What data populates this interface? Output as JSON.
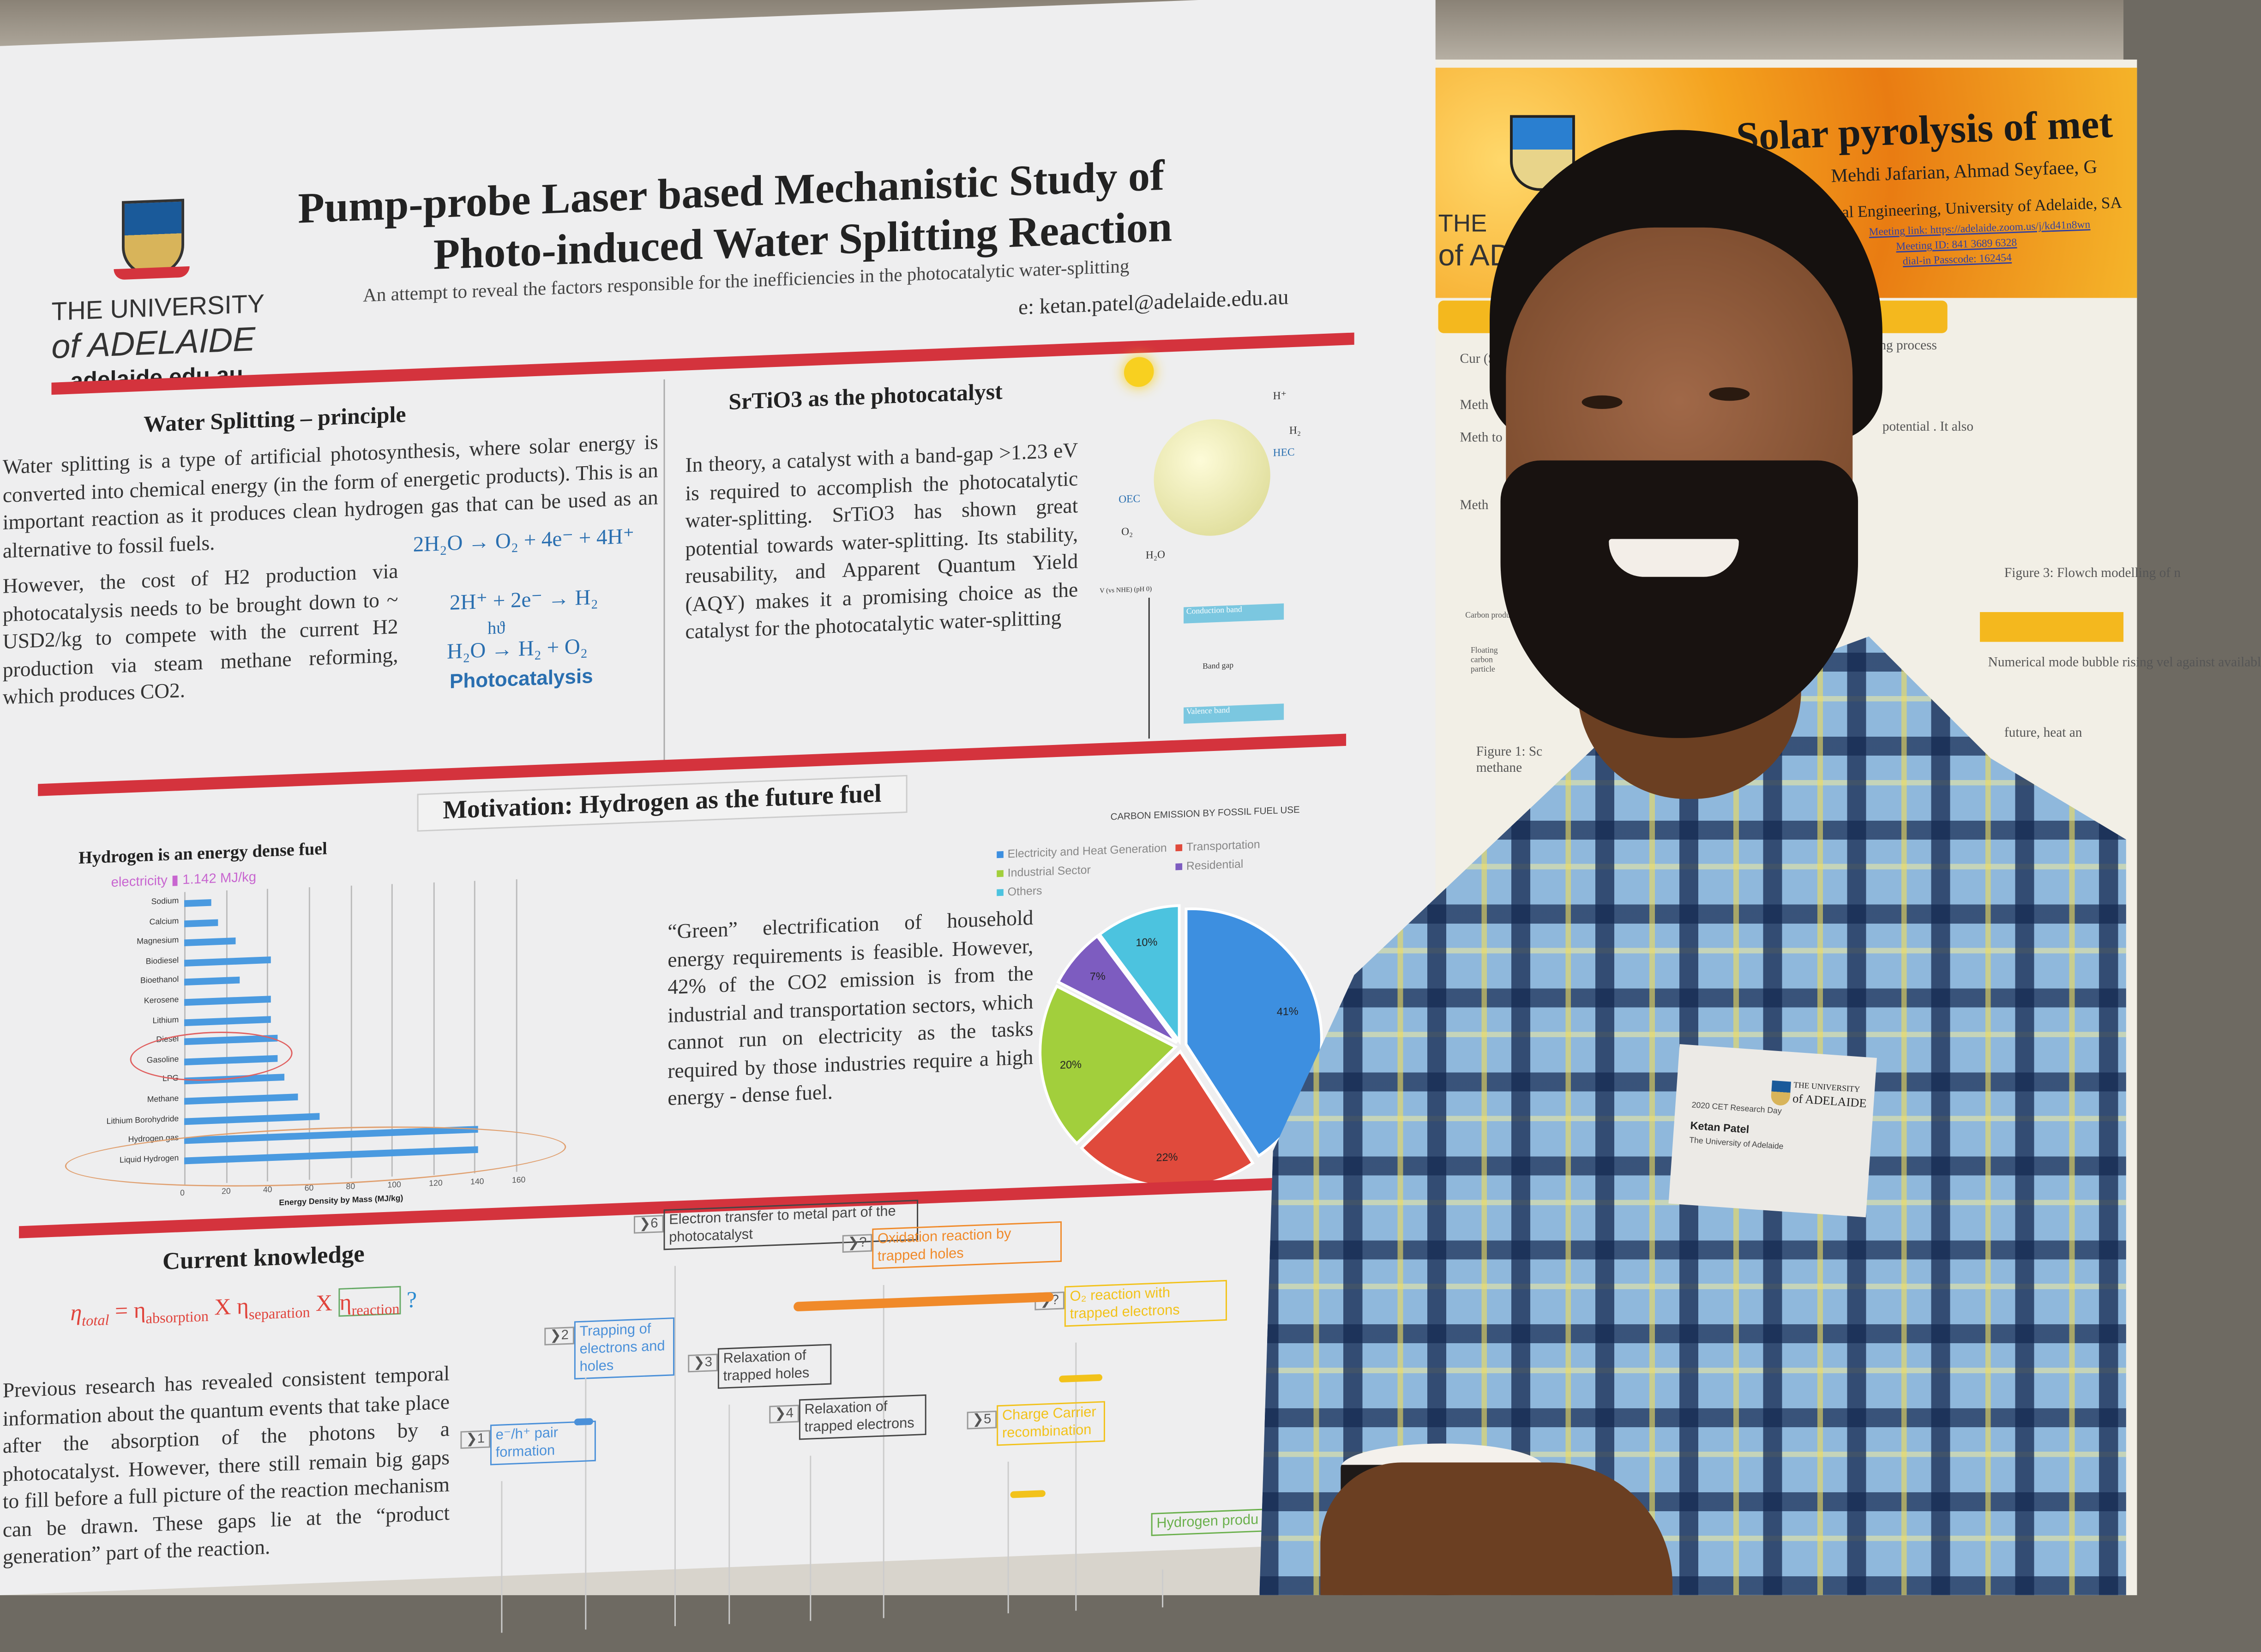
{
  "poster": {
    "logo": {
      "line1": "THE UNIVERSITY",
      "line2": "of ADELAIDE",
      "url": "adelaide.edu.au"
    },
    "title_line1": "Pump-probe Laser based Mechanistic Study of",
    "title_line2": "Photo-induced Water Splitting Reaction",
    "subtitle": "An attempt to reveal the factors responsible for the inefficiencies in the photocatalytic water-splitting",
    "email": "e: ketan.patel@adelaide.edu.au",
    "water_splitting": {
      "heading": "Water Splitting – principle",
      "para1": "Water splitting is a type of artificial photosynthesis, where solar energy is converted into chemical energy (in the form of energetic products). This is an important reaction as it produces clean hydrogen gas that can be used as an alternative to fossil fuels.",
      "para2": "However, the cost of H2 production via photocatalysis needs to be brought down to ~ USD2/kg to compete with the current H2 production via steam methane reforming, which produces CO2.",
      "eq1": "2H₂O → O₂ + 4e⁻ + 4H⁺",
      "eq2": "2H⁺ + 2e⁻ → H₂",
      "eq3_top": "hϑ",
      "eq3": "H₂O → H₂ + O₂",
      "eq_caption": "Photocatalysis"
    },
    "srtio3": {
      "heading": "SrTiO3 as the photocatalyst",
      "para": "In theory, a catalyst with a band-gap >1.23 eV is required to accomplish the photocatalytic water-splitting. SrTiO3 has shown great potential towards water-splitting. Its stability, reusability, and Apparent Quantum Yield (AQY) makes it a promising choice as the catalyst for the photocatalytic water-splitting",
      "diagram_labels": [
        "OEC",
        "HEC",
        "H₂O",
        "O₂",
        "H⁺",
        "H₂"
      ],
      "band_labels": [
        "Conduction band",
        "Band gap",
        "Valence band",
        "V (vs NHE) (pH 0)"
      ]
    },
    "motivation": {
      "heading": "Motivation: Hydrogen as the future fuel",
      "bar_heading": "Hydrogen is an energy dense fuel",
      "electricity_note": "electricity ▮ 1.142 MJ/kg",
      "green_para": "“Green” electrification of household energy requirements is feasible. However, 42% of the CO2 emission is from the industrial and transportation sectors, which cannot run on electricity as the tasks required by those industries require a high energy - dense fuel."
    },
    "current_knowledge": {
      "heading": "Current knowledge",
      "equation": {
        "lhs": "η",
        "lhs_sub": "total",
        "eq": " = ",
        "t1": "η",
        "t1_sub": "absorption",
        "x1": " X ",
        "t2": "η",
        "t2_sub": "separation",
        "x2": " X ",
        "t3": "η",
        "t3_sub": "reaction",
        "q": " ?"
      },
      "para": "Previous research has revealed consistent temporal information about the quantum events that take place after the absorption of the photons by a photocatalyst. However, there still remain big gaps to fill before a full picture of the reaction mechanism can be drawn. These gaps lie at the “product generation” part of the reaction."
    },
    "timeline": [
      {
        "step": "6",
        "text": "Electron transfer to metal part of the photocatalyst",
        "color": "#444444"
      },
      {
        "step": "?",
        "text": "Oxidation reaction by trapped holes",
        "color": "#f08a2a"
      },
      {
        "step": "?",
        "text": "O₂ reaction with trapped electrons",
        "color": "#f2c21a"
      },
      {
        "step": "2",
        "text": "Trapping of electrons and holes",
        "color": "#4a90d9"
      },
      {
        "step": "3",
        "text": "Relaxation of trapped holes",
        "color": "#444444"
      },
      {
        "step": "4",
        "text": "Relaxation of trapped electrons",
        "color": "#444444"
      },
      {
        "step": "1",
        "text": "e⁻/h⁺ pair formation",
        "color": "#4a90d9"
      },
      {
        "step": "5",
        "text": "Charge Carrier recombination",
        "color": "#f2c21a"
      },
      {
        "step": "",
        "text": "Hydrogen produ",
        "color": "#6ab04c"
      }
    ]
  },
  "chart_data": [
    {
      "type": "bar",
      "orientation": "horizontal",
      "title": "Hydrogen is an energy dense fuel",
      "categories": [
        "Sodium",
        "Calcium",
        "Magnesium",
        "Biodiesel",
        "Bioethanol",
        "Kerosene",
        "Lithium",
        "Diesel",
        "Gasoline",
        "LPG",
        "Methane",
        "Lithium Borohydride",
        "Hydrogen gas",
        "Liquid Hydrogen"
      ],
      "values": [
        13,
        16,
        25,
        42,
        27,
        42,
        42,
        45,
        45,
        48,
        55,
        65,
        142,
        142
      ],
      "xlabel": "Energy Density by Mass (MJ/kg)",
      "xlim": [
        0,
        160
      ],
      "xticks": [
        "0",
        "20",
        "40",
        "60",
        "80",
        "100",
        "120",
        "140",
        "160"
      ],
      "grid": true,
      "highlighted": [
        "Diesel",
        "Gasoline",
        "Hydrogen gas",
        "Liquid Hydrogen"
      ],
      "color": "#4a9ae0"
    },
    {
      "type": "pie",
      "title": "CARBON EMISSION BY FOSSIL FUEL USE",
      "legend_position": "top",
      "series": [
        {
          "name": "Electricity and Heat Generation",
          "value": 41,
          "label": "41%",
          "color": "#3d8fe0"
        },
        {
          "name": "Transportation",
          "value": 22,
          "label": "22%",
          "color": "#e04a3c"
        },
        {
          "name": "Industrial Sector",
          "value": 20,
          "label": "20%",
          "color": "#a2cf3c"
        },
        {
          "name": "Residential",
          "value": 7,
          "label": "7%",
          "color": "#7d5cc0"
        },
        {
          "name": "Others",
          "value": 10,
          "label": "10%",
          "color": "#4cc3df"
        }
      ]
    }
  ],
  "right_poster": {
    "title": "Solar pyrolysis of met",
    "authors": "Mehdi Jafarian, Ahmad Seyfaee, G",
    "affiliation": "al Engineering, University of Adelaide, SA",
    "meeting_link": "Meeting link: https://adelaide.zoom.us/j/kd41n8wn",
    "meeting_id": "Meeting ID: 841 3689 6328",
    "passcode": "dial-in Passcode: 162454",
    "logo_frag1": "THE",
    "logo_frag2": "of ADE",
    "fragments": [
      "Cur (SM",
      "Meth",
      "Meth to m offer",
      "Meth",
      "ing process",
      "potential . It also",
      "Figure 3: Flowch modelling of n",
      "Numerical mode bubble rising vel against availabl",
      "future, heat an",
      "Figure 1: Sc methane",
      "Carbon product",
      "Floating carbon particle"
    ]
  },
  "badge": {
    "logo_line1": "THE UNIVERSITY",
    "logo_line2": "of ADELAIDE",
    "event": "2020 CET Research Day",
    "name": "Ketan Patel",
    "org": "The University of Adelaide"
  },
  "colors": {
    "poster_red": "#d4333d",
    "adelaide_blue": "#1a5a9a",
    "accent_orange": "#f08a2a"
  }
}
